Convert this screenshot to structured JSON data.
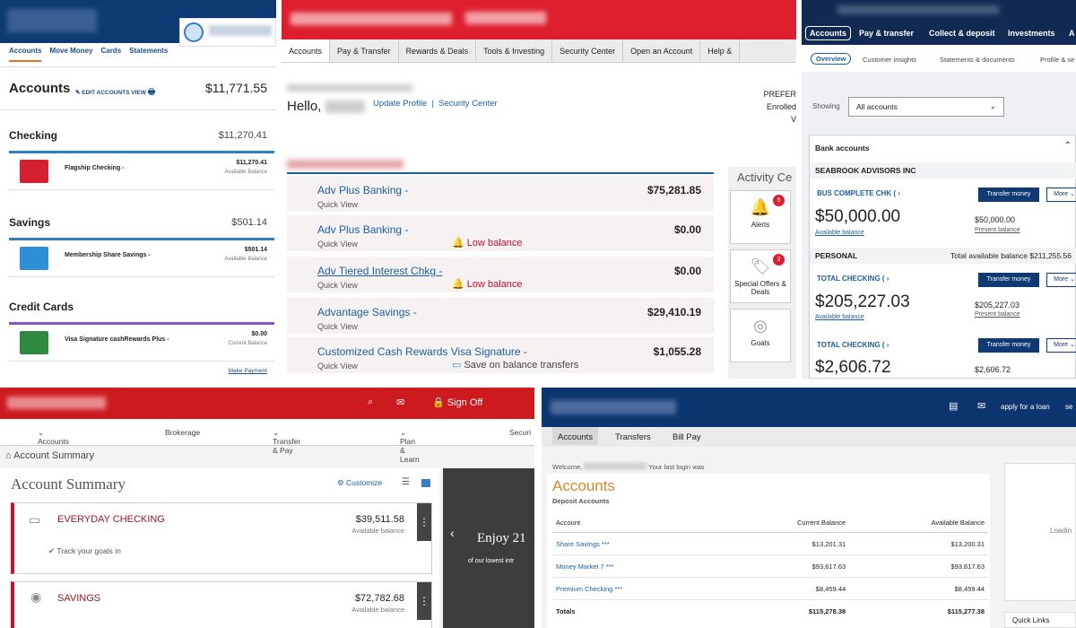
{
  "panel1": {
    "tabs": [
      "Accounts",
      "Move Money",
      "Cards",
      "Statements"
    ],
    "title": "Accounts",
    "edit_label": "EDIT ACCOUNTS VIEW",
    "total": "$11,771.55",
    "sections": [
      {
        "name": "Checking",
        "total": "$11,270.41",
        "account": "Flagship Checking -",
        "value": "$11,270.41",
        "sub": "Available Balance",
        "color": "#d4202f"
      },
      {
        "name": "Savings",
        "total": "$501.14",
        "account": "Membership Share Savings -",
        "value": "$501.14",
        "sub": "Available Balance",
        "color": "#2d8fd5"
      },
      {
        "name": "Credit Cards",
        "total": "",
        "account": "Visa Signature cashRewards Plus -",
        "value": "$0.00",
        "sub": "Current Balance",
        "color": "#2d8a3e"
      }
    ],
    "make_payment": "Make Payment"
  },
  "panel2": {
    "nav": [
      "Accounts",
      "Pay & Transfer",
      "Rewards & Deals",
      "Tools & Investing",
      "Security Center",
      "Open an Account",
      "Help &"
    ],
    "hello": "Hello,",
    "update_profile": "Update Profile",
    "security_center": "Security Center",
    "pref": [
      "PREFER",
      "Enrolled",
      "V"
    ],
    "rows": [
      {
        "name": "Adv Plus Banking -",
        "amount": "$75,281.85",
        "quick": "Quick View",
        "alert": ""
      },
      {
        "name": "Adv Plus Banking -",
        "amount": "$0.00",
        "quick": "Quick View",
        "alert": "Low balance"
      },
      {
        "name": "Adv Tiered Interest Chkg -",
        "amount": "$0.00",
        "quick": "Quick View",
        "alert": "Low balance"
      },
      {
        "name": "Advantage Savings -",
        "amount": "$29,410.19",
        "quick": "Quick View",
        "alert": ""
      },
      {
        "name": "Customized Cash Rewards Visa Signature -",
        "amount": "$1,055.28",
        "quick": "Quick View",
        "alert": "Save on balance transfers"
      }
    ],
    "side_title": "Activity Ce",
    "tiles": [
      {
        "label": "Alerts",
        "badge": "5",
        "icon": "bell-icon"
      },
      {
        "label": "Special Offers & Deals",
        "badge": "3",
        "icon": "tag-icon"
      },
      {
        "label": "Goals",
        "badge": "",
        "icon": "target-icon"
      }
    ]
  },
  "panel3": {
    "nav": [
      "Accounts",
      "Pay & transfer",
      "Collect & deposit",
      "Investments",
      "A"
    ],
    "sub": [
      "Overview",
      "Customer insights",
      "Statements & documents",
      "Profile & se"
    ],
    "showing": "Showing",
    "select_value": "All accounts",
    "bank_accounts": "Bank accounts",
    "group1": "SEABROOK ADVISORS INC",
    "group2": "PERSONAL",
    "group2_total": "Total available balance $211,255.56",
    "transfer": "Transfer money",
    "more": "More",
    "accounts": [
      {
        "name": "BUS COMPLETE CHK (",
        "avail": "$50,000.00",
        "avail_label": "Available balance",
        "present": "$50,000.00",
        "present_label": "Present balance"
      },
      {
        "name": "TOTAL CHECKING (",
        "avail": "$205,227.03",
        "avail_label": "Available balance",
        "present": "$205,227.03",
        "present_label": "Present balance"
      },
      {
        "name": "TOTAL CHECKING (",
        "avail": "$2,606.72",
        "avail_label": "",
        "present": "$2,606.72",
        "present_label": ""
      }
    ]
  },
  "panel4": {
    "sign_off": "Sign Off",
    "nav": [
      "Accounts",
      "Brokerage",
      "Transfer & Pay",
      "Plan & Learn",
      "Securi"
    ],
    "crumb": "Account Summary",
    "title": "Account Summary",
    "customize": "Customize",
    "accounts": [
      {
        "name": "EVERYDAY CHECKING",
        "amount": "$39,511.58",
        "sub": "Available balance",
        "goal": "Track your goals in"
      },
      {
        "name": "SAVINGS",
        "amount": "$72,782.68",
        "sub": "Available balance",
        "goal": ""
      }
    ],
    "promo_title": "Enjoy 21",
    "promo_sub": "of our lowest intr"
  },
  "panel5": {
    "links": [
      "apply for a loan",
      "se"
    ],
    "tabs": [
      "Accounts",
      "Transfers",
      "Bill Pay"
    ],
    "welcome": "Welcome,",
    "last_login": "Your last login was",
    "heading": "Accounts",
    "subheading": "Deposit Accounts",
    "columns": [
      "Account",
      "Current Balance",
      "Available Balance"
    ],
    "rows": [
      {
        "account": "Share Savings ***",
        "current": "$13,201.31",
        "available": "$13,200.31"
      },
      {
        "account": "Money Market 7 ***",
        "current": "$93,617.63",
        "available": "$93,617.63"
      },
      {
        "account": "Premium Checking ***",
        "current": "$8,459.44",
        "available": "$8,459.44"
      }
    ],
    "totals": {
      "account": "Totals",
      "current": "$115,278.38",
      "available": "$115,277.38"
    },
    "loading": "Loadin",
    "quick_links": "Quick Links"
  }
}
